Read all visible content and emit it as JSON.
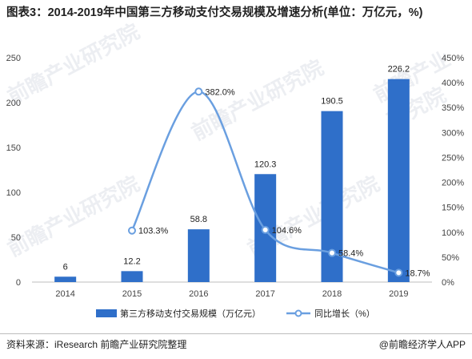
{
  "title": "图表3：2014-2019年中国第三方移动支付交易规模及增速分析(单位：万亿元，%)",
  "source": "资料来源：iResearch 前瞻产业研究院整理",
  "brand": "@前瞻经济学人APP",
  "watermark": "前瞻产业研究院",
  "colors": {
    "bar": "#2f6fc9",
    "line": "#6a9fe0"
  },
  "chart_data": {
    "type": "bar",
    "categories": [
      "2014",
      "2015",
      "2016",
      "2017",
      "2018",
      "2019"
    ],
    "series": [
      {
        "name": "第三方移动支付交易规模（万亿元）",
        "type": "bar",
        "axis": "left",
        "values": [
          6,
          12.2,
          58.8,
          120.3,
          190.5,
          226.2
        ],
        "labels": [
          "6",
          "12.2",
          "58.8",
          "120.3",
          "190.5",
          "226.2"
        ]
      },
      {
        "name": "同比增长（%）",
        "type": "line",
        "axis": "right",
        "values": [
          null,
          103.3,
          382.0,
          104.6,
          58.4,
          18.7
        ],
        "labels": [
          "",
          "103.3%",
          "382.0%",
          "104.6%",
          "58.4%",
          "18.7%"
        ]
      }
    ],
    "ylim": [
      0,
      250
    ],
    "yticks": [
      "0",
      "50",
      "100",
      "150",
      "200",
      "250"
    ],
    "y2lim": [
      0,
      450
    ],
    "y2ticks": [
      "0%",
      "50%",
      "100%",
      "150%",
      "200%",
      "250%",
      "300%",
      "350%",
      "400%",
      "450%"
    ],
    "legend": "bottom",
    "grid": false
  }
}
